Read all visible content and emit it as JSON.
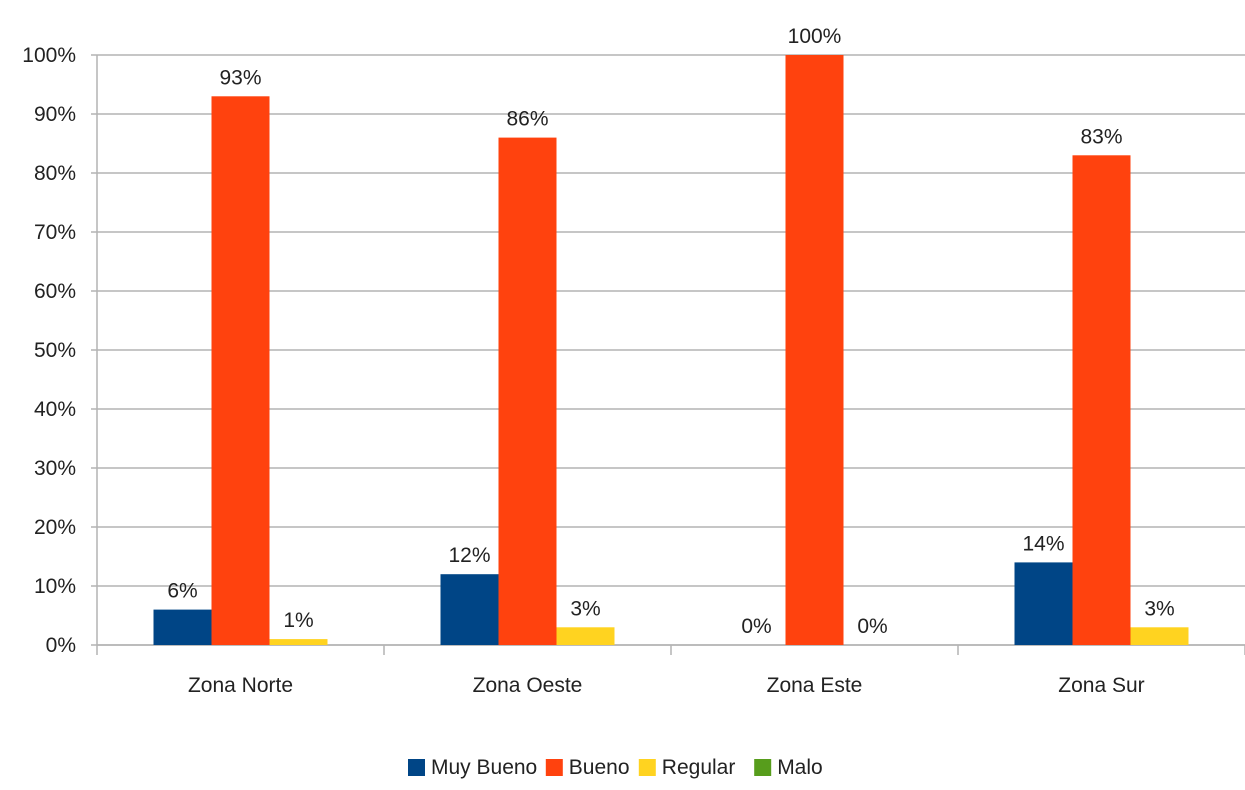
{
  "chart_data": {
    "type": "bar",
    "title": "",
    "xlabel": "",
    "ylabel": "",
    "categories": [
      "Zona Norte",
      "Zona Oeste",
      "Zona Este",
      "Zona Sur"
    ],
    "ylim": [
      0,
      100
    ],
    "y_ticks": [
      0,
      10,
      20,
      30,
      40,
      50,
      60,
      70,
      80,
      90,
      100
    ],
    "y_tick_labels": [
      "0%",
      "10%",
      "20%",
      "30%",
      "40%",
      "50%",
      "60%",
      "70%",
      "80%",
      "90%",
      "100%"
    ],
    "grid": true,
    "legend_position": "bottom",
    "series": [
      {
        "name": "Muy Bueno",
        "color": "#004586",
        "values": [
          6,
          12,
          0,
          14
        ],
        "labels": [
          "6%",
          "12%",
          "0%",
          "14%"
        ]
      },
      {
        "name": "Bueno",
        "color": "#ff420e",
        "values": [
          93,
          86,
          100,
          83
        ],
        "labels": [
          "93%",
          "86%",
          "100%",
          "83%"
        ]
      },
      {
        "name": "Regular",
        "color": "#ffd320",
        "values": [
          1,
          3,
          0,
          3
        ],
        "labels": [
          "1%",
          "3%",
          "0%",
          "3%"
        ]
      },
      {
        "name": "Malo",
        "color": "#579d1c",
        "values": [
          0,
          0,
          0,
          0
        ],
        "labels": [
          "",
          "",
          "",
          ""
        ]
      }
    ]
  }
}
